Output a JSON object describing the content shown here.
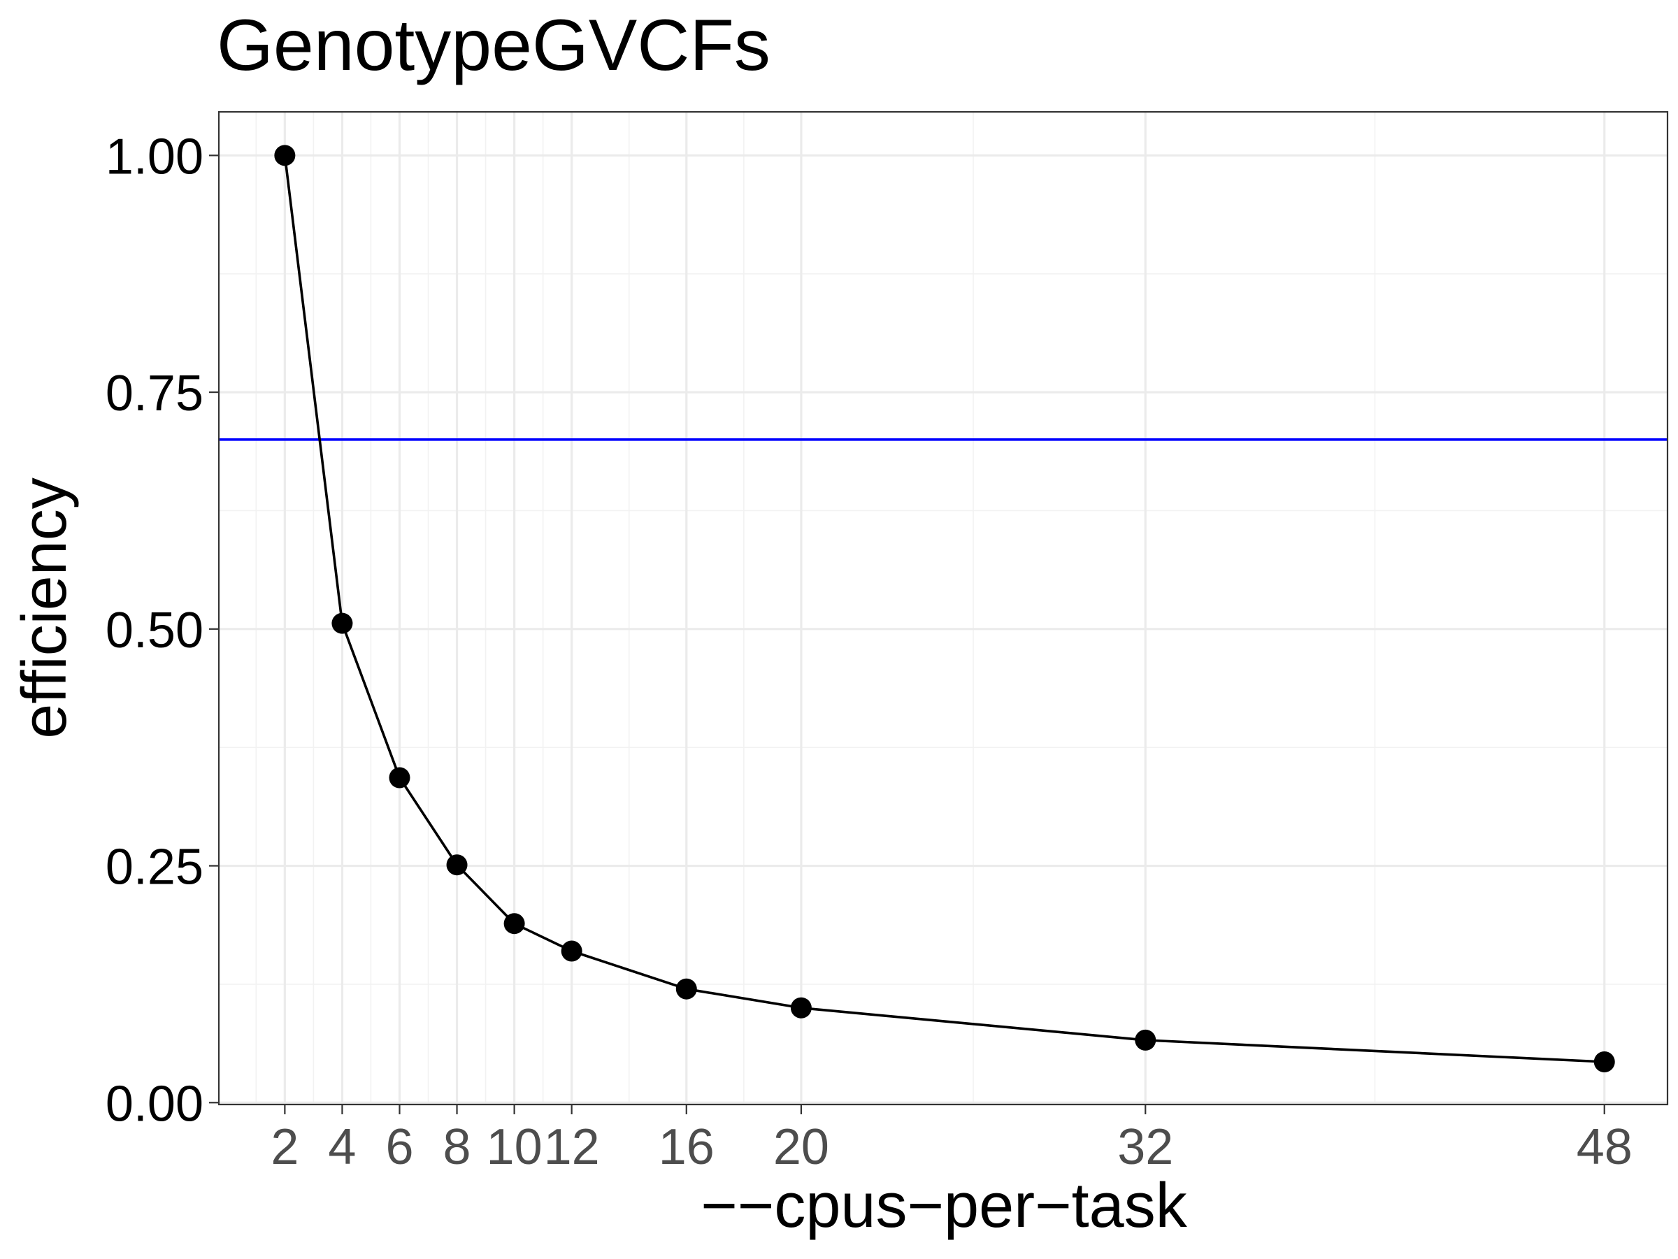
{
  "chart_data": {
    "type": "line",
    "title": "GenotypeGVCFs",
    "xlabel": "−−cpus−per−task",
    "ylabel": "efficiency",
    "x_ticks": [
      2,
      4,
      6,
      8,
      10,
      12,
      16,
      20,
      32,
      48
    ],
    "x_tick_labels": [
      "2",
      "4",
      "6",
      "8",
      "10",
      "12",
      "16",
      "20",
      "32",
      "48"
    ],
    "y_ticks": [
      0,
      0.25,
      0.5,
      0.75,
      1.0
    ],
    "y_tick_labels": [
      "0.00",
      "0.25",
      "0.50",
      "0.75",
      "1.00"
    ],
    "xlim": [
      -0.3,
      50.2
    ],
    "ylim": [
      -0.002,
      1.046
    ],
    "grid": true,
    "series": [
      {
        "x": [
          2,
          4,
          6,
          8,
          10,
          12,
          16,
          20,
          32,
          48
        ],
        "values": [
          1.0,
          0.506,
          0.343,
          0.251,
          0.189,
          0.16,
          0.12,
          0.1,
          0.066,
          0.043
        ],
        "color": "#000000"
      }
    ],
    "reference_line": {
      "y": 0.7,
      "color": "#0000FF"
    }
  }
}
